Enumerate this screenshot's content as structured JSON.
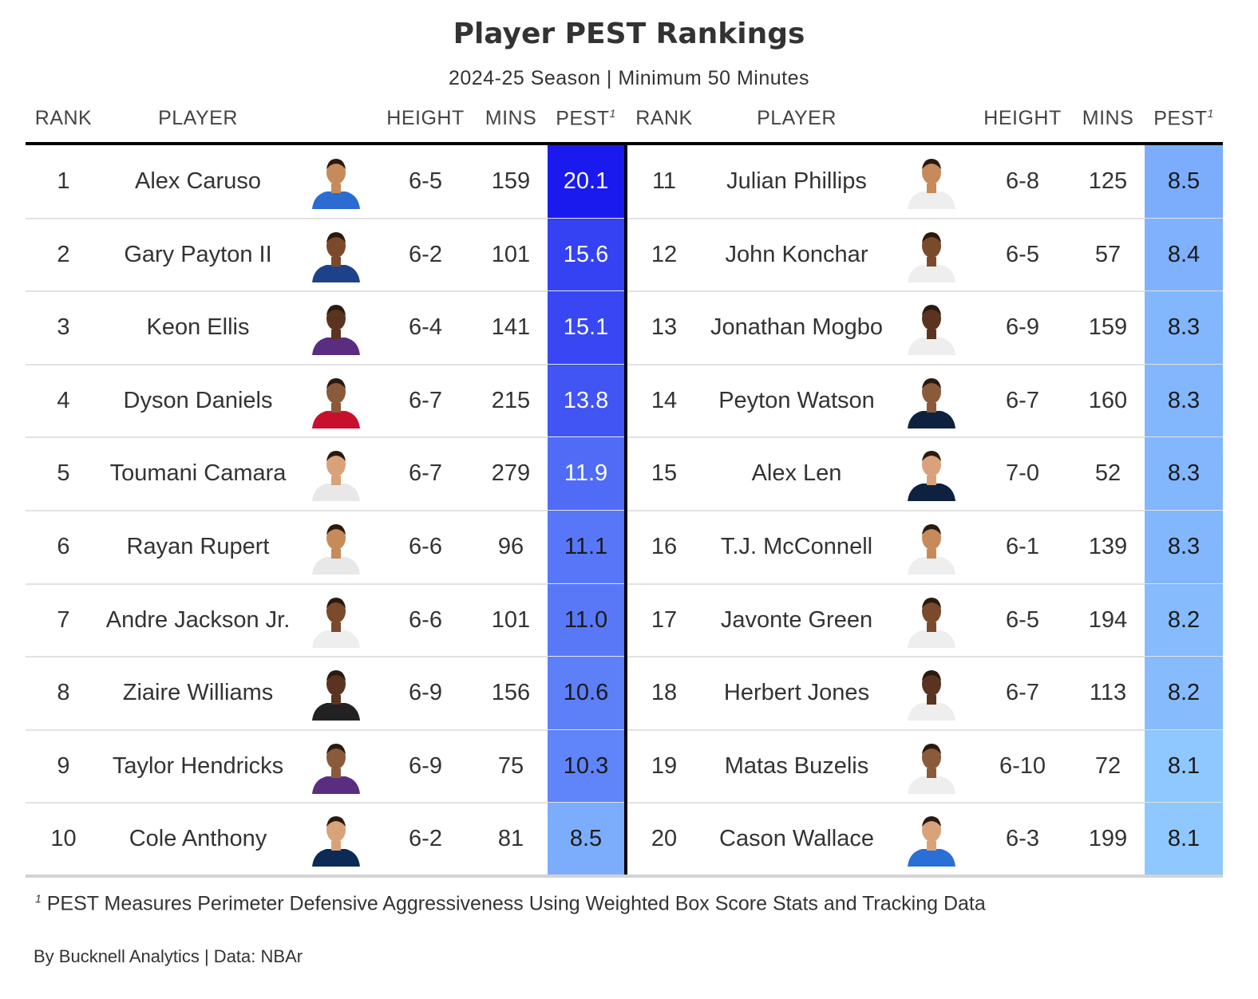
{
  "title": "Player PEST Rankings",
  "subtitle": "2024-25 Season | Minimum 50 Minutes",
  "headers": {
    "rank": "RANK",
    "player": "PLAYER",
    "height": "HEIGHT",
    "mins": "MINS",
    "pest": "PEST",
    "footnote_marker": "1"
  },
  "colors": {
    "pest_max": "#1a1aef",
    "pest_min": "#8ec8ff"
  },
  "chart_data": {
    "type": "table",
    "columns": [
      "RANK",
      "PLAYER",
      "HEIGHT",
      "MINS",
      "PEST"
    ],
    "rows": [
      {
        "rank": "1",
        "player": "Alex Caruso",
        "height": "6-5",
        "mins": "159",
        "pest": "20.1",
        "jersey": "#2c6bd1"
      },
      {
        "rank": "2",
        "player": "Gary Payton II",
        "height": "6-2",
        "mins": "101",
        "pest": "15.6",
        "jersey": "#1d428a"
      },
      {
        "rank": "3",
        "player": "Keon Ellis",
        "height": "6-4",
        "mins": "141",
        "pest": "15.1",
        "jersey": "#5a2d81"
      },
      {
        "rank": "4",
        "player": "Dyson Daniels",
        "height": "6-7",
        "mins": "215",
        "pest": "13.8",
        "jersey": "#c8102e"
      },
      {
        "rank": "5",
        "player": "Toumani Camara",
        "height": "6-7",
        "mins": "279",
        "pest": "11.9",
        "jersey": "#e8e8e8"
      },
      {
        "rank": "6",
        "player": "Rayan Rupert",
        "height": "6-6",
        "mins": "96",
        "pest": "11.1",
        "jersey": "#e8e8e8"
      },
      {
        "rank": "7",
        "player": "Andre Jackson Jr.",
        "height": "6-6",
        "mins": "101",
        "pest": "11.0",
        "jersey": "#eeeeee"
      },
      {
        "rank": "8",
        "player": "Ziaire Williams",
        "height": "6-9",
        "mins": "156",
        "pest": "10.6",
        "jersey": "#222222"
      },
      {
        "rank": "9",
        "player": "Taylor Hendricks",
        "height": "6-9",
        "mins": "75",
        "pest": "10.3",
        "jersey": "#5a2d81"
      },
      {
        "rank": "10",
        "player": "Cole Anthony",
        "height": "6-2",
        "mins": "81",
        "pest": "8.5",
        "jersey": "#0b2a55"
      },
      {
        "rank": "11",
        "player": "Julian Phillips",
        "height": "6-8",
        "mins": "125",
        "pest": "8.5",
        "jersey": "#eeeeee"
      },
      {
        "rank": "12",
        "player": "John Konchar",
        "height": "6-5",
        "mins": "57",
        "pest": "8.4",
        "jersey": "#eeeeee"
      },
      {
        "rank": "13",
        "player": "Jonathan Mogbo",
        "height": "6-9",
        "mins": "159",
        "pest": "8.3",
        "jersey": "#eeeeee"
      },
      {
        "rank": "14",
        "player": "Peyton Watson",
        "height": "6-7",
        "mins": "160",
        "pest": "8.3",
        "jersey": "#0e2240"
      },
      {
        "rank": "15",
        "player": "Alex Len",
        "height": "7-0",
        "mins": "52",
        "pest": "8.3",
        "jersey": "#0e2240"
      },
      {
        "rank": "16",
        "player": "T.J. McConnell",
        "height": "6-1",
        "mins": "139",
        "pest": "8.3",
        "jersey": "#eeeeee"
      },
      {
        "rank": "17",
        "player": "Javonte Green",
        "height": "6-5",
        "mins": "194",
        "pest": "8.2",
        "jersey": "#eeeeee"
      },
      {
        "rank": "18",
        "player": "Herbert Jones",
        "height": "6-7",
        "mins": "113",
        "pest": "8.2",
        "jersey": "#eeeeee"
      },
      {
        "rank": "19",
        "player": "Matas Buzelis",
        "height": "6-10",
        "mins": "72",
        "pest": "8.1",
        "jersey": "#eeeeee"
      },
      {
        "rank": "20",
        "player": "Cason Wallace",
        "height": "6-3",
        "mins": "199",
        "pest": "8.1",
        "jersey": "#2a6fd6"
      }
    ]
  },
  "footnote": {
    "marker": "1",
    "text": "PEST Measures Perimeter Defensive Aggressiveness Using Weighted Box Score Stats and Tracking Data"
  },
  "credit": "By Bucknell Analytics | Data: NBAr"
}
